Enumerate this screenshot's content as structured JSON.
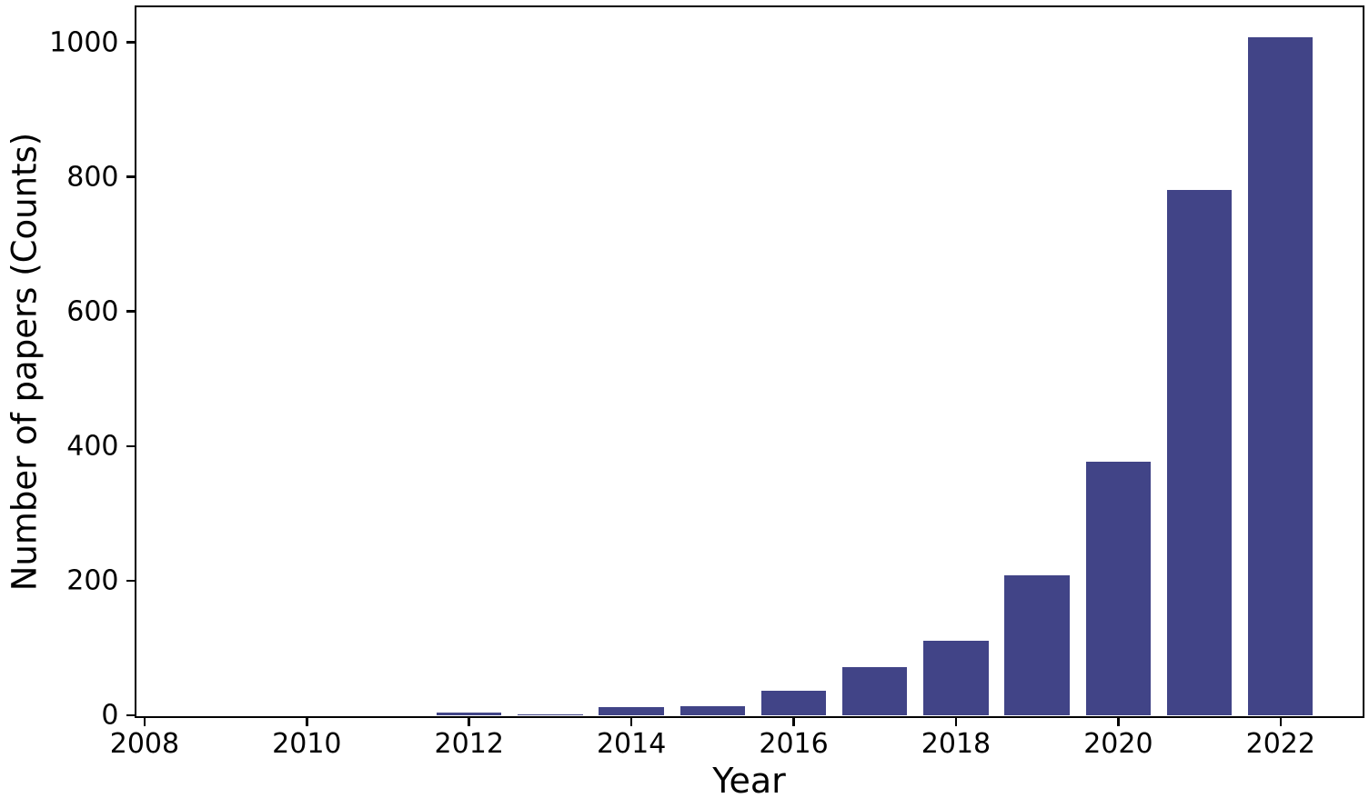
{
  "figure": {
    "background": "#ffffff",
    "axis_color": "#000000",
    "text_color": "#000000"
  },
  "chart_data": {
    "type": "bar",
    "x": [
      2008,
      2009,
      2010,
      2011,
      2012,
      2013,
      2014,
      2015,
      2016,
      2017,
      2018,
      2019,
      2020,
      2021,
      2022
    ],
    "values": [
      0,
      0,
      0,
      0,
      4,
      2,
      12,
      14,
      37,
      71,
      111,
      208,
      377,
      780,
      1008
    ],
    "xlabel": "Year",
    "ylabel": "Number of papers (Counts)",
    "bar_color": "#414487",
    "bar_width_years": 0.8,
    "xlim": [
      2007.9,
      2023.0
    ],
    "ylim": [
      0,
      1052
    ],
    "xticks": [
      2008,
      2010,
      2012,
      2014,
      2016,
      2018,
      2020,
      2022
    ],
    "yticks": [
      0,
      200,
      400,
      600,
      800,
      1000
    ],
    "grid": false,
    "legend": null,
    "title": ""
  }
}
